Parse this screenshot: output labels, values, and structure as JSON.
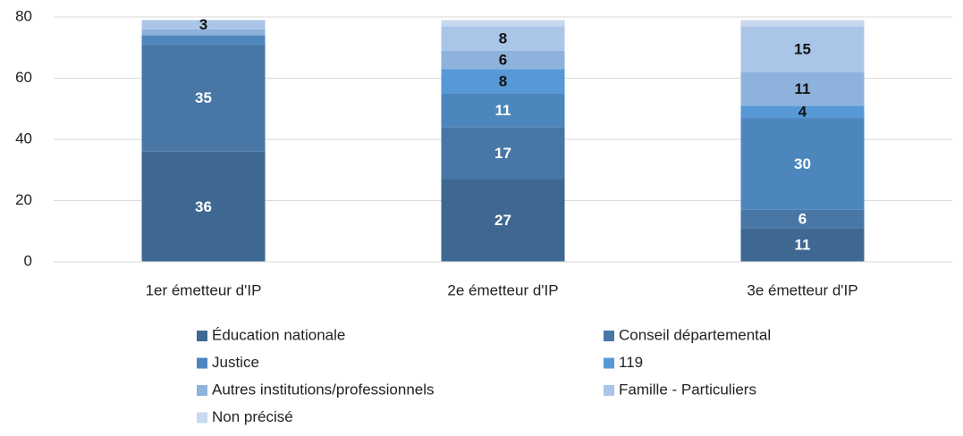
{
  "chart_data": {
    "type": "stacked_bar",
    "categories": [
      "1er émetteur d'IP",
      "2e émetteur d'IP",
      "3e émetteur  d'IP"
    ],
    "series": [
      {
        "name": "Éducation nationale",
        "color": "#3e6891",
        "label_color": "#ffffff",
        "values": [
          36,
          27,
          11
        ],
        "value_labels": [
          "36",
          "27",
          "11"
        ]
      },
      {
        "name": "Conseil départemental",
        "color": "#4877a6",
        "label_color": "#ffffff",
        "values": [
          35,
          17,
          6
        ],
        "value_labels": [
          "35",
          "17",
          "6"
        ]
      },
      {
        "name": "Justice",
        "color": "#4d86bd",
        "label_color": "#ffffff",
        "values": [
          3,
          11,
          30
        ],
        "value_labels": [
          null,
          "11",
          "30"
        ]
      },
      {
        "name": "119",
        "color": "#5699d6",
        "label_color": "#111111",
        "values": [
          0,
          8,
          4
        ],
        "value_labels": [
          null,
          "8",
          "4"
        ]
      },
      {
        "name": "Autres institutions/professionnels",
        "color": "#8db2dc",
        "label_color": "#111111",
        "values": [
          2,
          6,
          11
        ],
        "value_labels": [
          null,
          "6",
          "11"
        ]
      },
      {
        "name": "Famille - Particuliers",
        "color": "#aac5e7",
        "label_color": "#111111",
        "values": [
          3,
          8,
          15
        ],
        "value_labels": [
          "3",
          "8",
          "15"
        ]
      },
      {
        "name": "Non précisé",
        "color": "#c8d8ee",
        "label_color": "#111111",
        "values": [
          0,
          2,
          2
        ],
        "value_labels": [
          null,
          null,
          null
        ]
      }
    ],
    "ylim": [
      0,
      80
    ],
    "yticks": [
      0,
      20,
      40,
      60,
      80
    ],
    "grid": true,
    "legend": "bottom"
  }
}
